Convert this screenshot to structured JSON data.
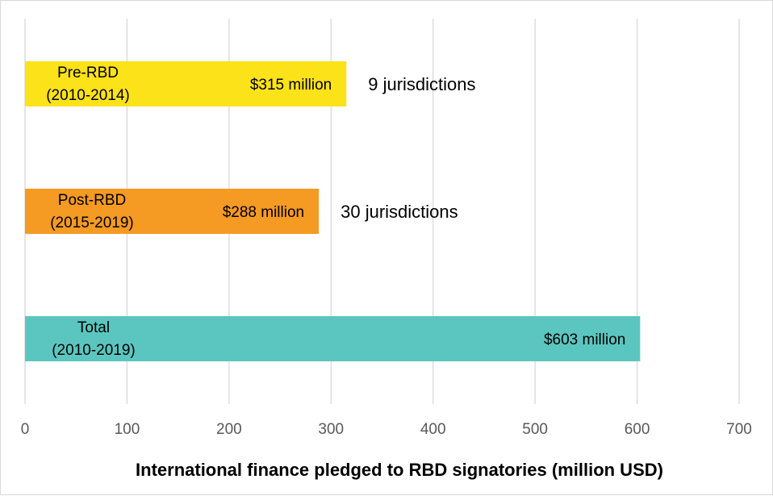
{
  "chart_data": {
    "type": "bar",
    "orientation": "horizontal",
    "categories": [
      "Pre-RBD (2010-2014)",
      "Post-RBD (2015-2019)",
      "Total (2010-2019)"
    ],
    "category_lines": [
      [
        "Pre-RBD",
        "(2010-2014)"
      ],
      [
        "Post-RBD",
        "(2015-2019)"
      ],
      [
        "Total",
        "(2010-2019)"
      ]
    ],
    "values": [
      315,
      288,
      603
    ],
    "value_labels": [
      "$315 million",
      "$288 million",
      "$603 million"
    ],
    "annotations": [
      "9 jurisdictions",
      "30 jurisdictions",
      ""
    ],
    "colors": [
      "#fce219",
      "#f59a23",
      "#5bc6bf"
    ],
    "xlabel": "International finance pledged to RBD signatories (million USD)",
    "ylabel": "",
    "title": "",
    "xlim": [
      0,
      700
    ],
    "xticks": [
      0,
      100,
      200,
      300,
      400,
      500,
      600,
      700
    ],
    "grid": true,
    "gridline_color": "#d9d9d9"
  }
}
